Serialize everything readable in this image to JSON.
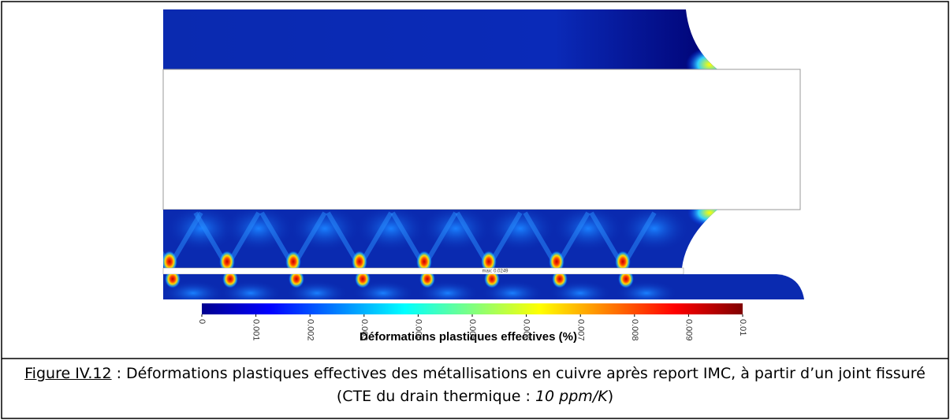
{
  "figure": {
    "annotation": "max: 0.0249",
    "colorbar": {
      "lim": [
        0,
        0.01
      ],
      "ticks": [
        0,
        0.001,
        0.002,
        0.003,
        0.004,
        0.005,
        0.006,
        0.007,
        0.008,
        0.009,
        0.01
      ],
      "label": "Déformations plastiques effectives (%)"
    }
  },
  "caption": {
    "label": "Figure IV.12",
    "text": " : Déformations plastiques effectives des métallisations en cuivre après report IMC, à partir d’un joint fissuré (CTE du drain thermique : ",
    "emphasis": "10 ppm/K",
    "end": ")"
  }
}
